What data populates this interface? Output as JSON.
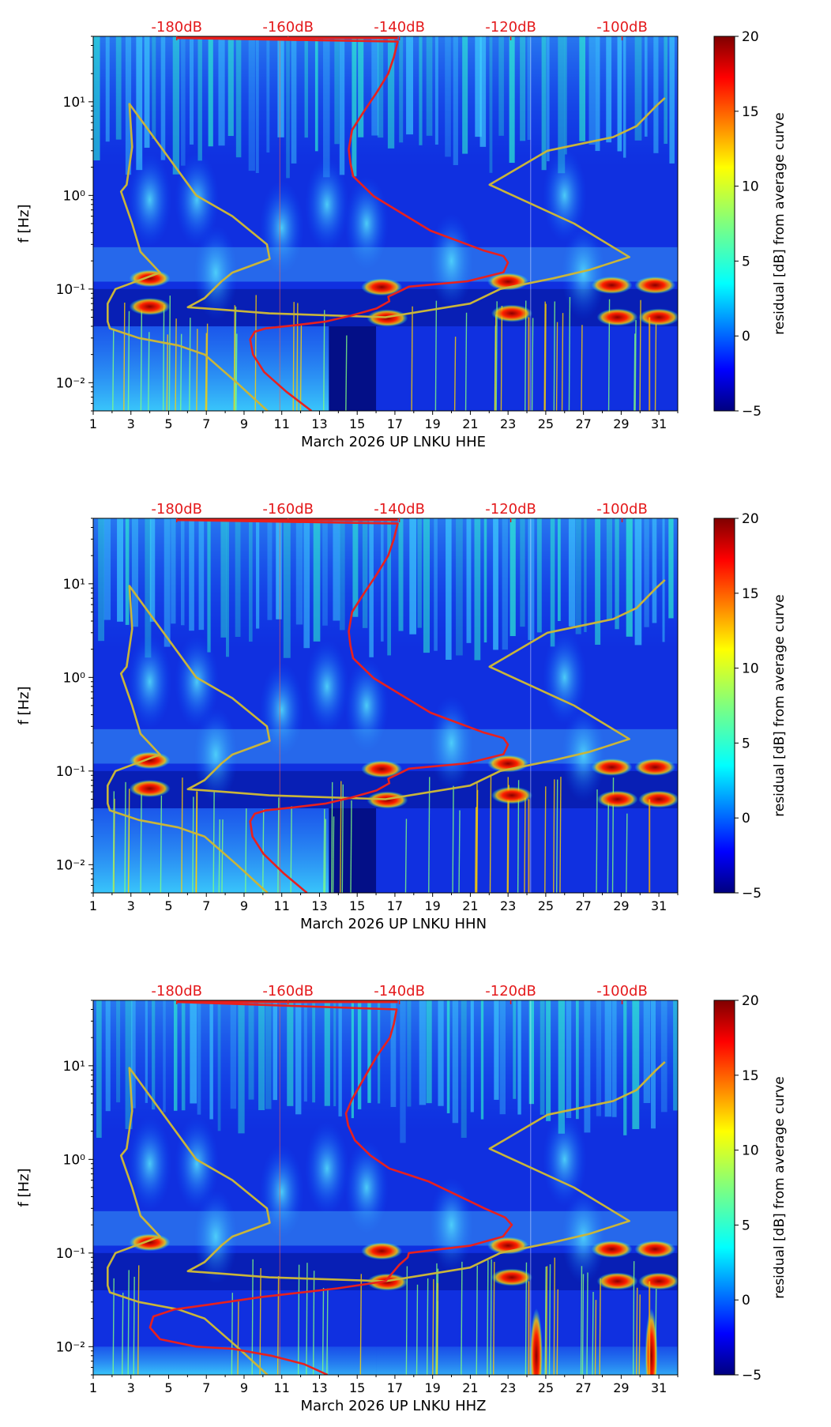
{
  "colors": {
    "red_curve": "#e8201e",
    "yellow_curve": "#c9b53a",
    "db_label": "#e41a1c",
    "axis": "#000000",
    "bg": "#000080"
  },
  "chart_data": [
    {
      "type": "heatmap",
      "xlabel": "March 2026 UP LNKU  HHE",
      "ylabel": "f [Hz]",
      "x_ticks": [
        "1",
        "3",
        "5",
        "7",
        "9",
        "11",
        "13",
        "15",
        "17",
        "19",
        "21",
        "23",
        "25",
        "27",
        "29",
        "31"
      ],
      "xlim": [
        1,
        32
      ],
      "y_ticks": [
        "10⁻²",
        "10⁻¹",
        "10⁰",
        "10¹"
      ],
      "ylim": [
        0.005,
        50
      ],
      "db_ticks": [
        "-180dB",
        "-160dB",
        "-140dB",
        "-120dB",
        "-100dB"
      ],
      "db_range": [
        -195,
        -90
      ],
      "colorbar": {
        "label": "residual [dB] from average curve",
        "ticks": [
          "-5",
          "0",
          "5",
          "10",
          "15",
          "20"
        ],
        "range": [
          -5,
          20
        ]
      },
      "red_curve": [
        [
          -155.8,
          0.005
        ],
        [
          -160.3,
          0.008
        ],
        [
          -164.3,
          0.013
        ],
        [
          -166.3,
          0.02
        ],
        [
          -166.8,
          0.029
        ],
        [
          -166.0,
          0.035
        ],
        [
          -164.0,
          0.038
        ],
        [
          -158.8,
          0.041
        ],
        [
          -153.2,
          0.045
        ],
        [
          -148.7,
          0.052
        ],
        [
          -144.1,
          0.062
        ],
        [
          -141.8,
          0.074
        ],
        [
          -142.0,
          0.083
        ],
        [
          -139.9,
          0.095
        ],
        [
          -138.3,
          0.106
        ],
        [
          -127.8,
          0.121
        ],
        [
          -121.3,
          0.151
        ],
        [
          -120.5,
          0.192
        ],
        [
          -121.3,
          0.225
        ],
        [
          -125.0,
          0.26
        ],
        [
          -134.4,
          0.42
        ],
        [
          -144.6,
          0.98
        ],
        [
          -148.3,
          1.6
        ],
        [
          -148.8,
          2.2
        ],
        [
          -149.1,
          3.1
        ],
        [
          -148.5,
          5.0
        ],
        [
          -146.3,
          8.0
        ],
        [
          -144.1,
          12.5
        ],
        [
          -142.0,
          20.0
        ],
        [
          -141.0,
          30.0
        ],
        [
          -140.3,
          44.0
        ],
        [
          -180.0,
          48.0
        ]
      ],
      "yellow_curve": [
        [
          -163.7,
          0.005
        ],
        [
          -169.2,
          0.01
        ],
        [
          -175.0,
          0.02
        ],
        [
          -179.7,
          0.025
        ],
        [
          -186.8,
          0.03
        ],
        [
          -192.0,
          0.038
        ],
        [
          -192.4,
          0.045
        ],
        [
          -192.4,
          0.07
        ],
        [
          -191.0,
          0.1
        ],
        [
          -183.0,
          0.15
        ],
        [
          -186.5,
          0.25
        ],
        [
          -188.0,
          0.5
        ],
        [
          -190.0,
          1.1
        ],
        [
          -189.0,
          1.3
        ],
        [
          -188.0,
          3.3
        ],
        [
          -188.5,
          9.5
        ],
        [
          -176.5,
          1.0
        ],
        [
          -170.0,
          0.6
        ],
        [
          -163.8,
          0.3
        ],
        [
          -163.3,
          0.21
        ],
        [
          -170.0,
          0.15
        ],
        [
          -172.0,
          0.12
        ],
        [
          -175.0,
          0.08
        ],
        [
          -178.0,
          0.064
        ],
        [
          -171.6,
          0.06
        ],
        [
          -163.4,
          0.055
        ],
        [
          -142.5,
          0.05
        ],
        [
          -127.3,
          0.07
        ],
        [
          -121.9,
          0.1
        ],
        [
          -112.4,
          0.13
        ],
        [
          -105.9,
          0.16
        ],
        [
          -98.7,
          0.22
        ],
        [
          -108.6,
          0.5
        ],
        [
          -123.8,
          1.3
        ],
        [
          -113.4,
          3.0
        ],
        [
          -101.6,
          4.2
        ],
        [
          -97.4,
          5.5
        ],
        [
          -93.9,
          9.0
        ],
        [
          -92.3,
          11.0
        ]
      ],
      "hot_spots": [
        [
          16.3,
          0.105
        ],
        [
          16.6,
          0.049
        ],
        [
          23.0,
          0.12
        ],
        [
          23.2,
          0.055
        ],
        [
          28.5,
          0.11
        ],
        [
          28.8,
          0.05
        ],
        [
          30.8,
          0.11
        ],
        [
          31.0,
          0.05
        ],
        [
          4.0,
          0.13
        ],
        [
          4.0,
          0.065
        ]
      ]
    },
    {
      "type": "heatmap",
      "xlabel": "March 2026 UP LNKU  HHN",
      "ylabel": "f [Hz]",
      "x_ticks": [
        "1",
        "3",
        "5",
        "7",
        "9",
        "11",
        "13",
        "15",
        "17",
        "19",
        "21",
        "23",
        "25",
        "27",
        "29",
        "31"
      ],
      "xlim": [
        1,
        32
      ],
      "y_ticks": [
        "10⁻²",
        "10⁻¹",
        "10⁰",
        "10¹"
      ],
      "ylim": [
        0.005,
        50
      ],
      "db_ticks": [
        "-180dB",
        "-160dB",
        "-140dB",
        "-120dB",
        "-100dB"
      ],
      "db_range": [
        -195,
        -90
      ],
      "colorbar": {
        "label": "residual [dB] from average curve",
        "ticks": [
          "-5",
          "0",
          "5",
          "10",
          "15",
          "20"
        ],
        "range": [
          -5,
          20
        ]
      },
      "red_curve": [
        [
          -156.6,
          0.005
        ],
        [
          -160.7,
          0.008
        ],
        [
          -164.4,
          0.013
        ],
        [
          -166.4,
          0.02
        ],
        [
          -166.8,
          0.029
        ],
        [
          -166.0,
          0.035
        ],
        [
          -164.0,
          0.038
        ],
        [
          -158.8,
          0.041
        ],
        [
          -153.2,
          0.045
        ],
        [
          -148.7,
          0.052
        ],
        [
          -144.1,
          0.062
        ],
        [
          -141.8,
          0.074
        ],
        [
          -142.0,
          0.083
        ],
        [
          -139.9,
          0.095
        ],
        [
          -138.3,
          0.106
        ],
        [
          -127.8,
          0.121
        ],
        [
          -121.3,
          0.151
        ],
        [
          -120.5,
          0.192
        ],
        [
          -121.3,
          0.225
        ],
        [
          -125.0,
          0.26
        ],
        [
          -134.4,
          0.42
        ],
        [
          -144.6,
          0.98
        ],
        [
          -148.3,
          1.6
        ],
        [
          -148.8,
          2.2
        ],
        [
          -149.1,
          3.1
        ],
        [
          -148.5,
          5.0
        ],
        [
          -146.3,
          8.0
        ],
        [
          -144.1,
          12.5
        ],
        [
          -142.0,
          20.0
        ],
        [
          -141.0,
          30.0
        ],
        [
          -140.3,
          44.0
        ],
        [
          -180.0,
          48.0
        ]
      ],
      "yellow_curve": [
        [
          -163.7,
          0.005
        ],
        [
          -169.2,
          0.01
        ],
        [
          -175.0,
          0.02
        ],
        [
          -179.7,
          0.025
        ],
        [
          -186.8,
          0.03
        ],
        [
          -192.0,
          0.038
        ],
        [
          -192.4,
          0.045
        ],
        [
          -192.4,
          0.07
        ],
        [
          -191.0,
          0.1
        ],
        [
          -183.0,
          0.15
        ],
        [
          -186.5,
          0.25
        ],
        [
          -188.0,
          0.5
        ],
        [
          -190.0,
          1.1
        ],
        [
          -189.0,
          1.3
        ],
        [
          -188.0,
          3.3
        ],
        [
          -188.5,
          9.5
        ],
        [
          -176.5,
          1.0
        ],
        [
          -170.0,
          0.6
        ],
        [
          -163.8,
          0.3
        ],
        [
          -163.3,
          0.21
        ],
        [
          -170.0,
          0.15
        ],
        [
          -172.0,
          0.12
        ],
        [
          -175.0,
          0.08
        ],
        [
          -178.0,
          0.064
        ],
        [
          -171.6,
          0.06
        ],
        [
          -163.4,
          0.055
        ],
        [
          -142.5,
          0.05
        ],
        [
          -127.3,
          0.07
        ],
        [
          -121.9,
          0.1
        ],
        [
          -112.4,
          0.13
        ],
        [
          -105.9,
          0.16
        ],
        [
          -98.7,
          0.22
        ],
        [
          -108.6,
          0.5
        ],
        [
          -123.8,
          1.3
        ],
        [
          -113.4,
          3.0
        ],
        [
          -101.6,
          4.2
        ],
        [
          -97.4,
          5.5
        ],
        [
          -93.9,
          9.0
        ],
        [
          -92.3,
          11.0
        ]
      ],
      "hot_spots": [
        [
          16.3,
          0.105
        ],
        [
          16.6,
          0.049
        ],
        [
          23.0,
          0.12
        ],
        [
          23.2,
          0.055
        ],
        [
          28.5,
          0.11
        ],
        [
          28.8,
          0.05
        ],
        [
          30.8,
          0.11
        ],
        [
          31.0,
          0.05
        ],
        [
          4.0,
          0.13
        ],
        [
          4.0,
          0.065
        ]
      ]
    },
    {
      "type": "heatmap",
      "xlabel": "March 2026 UP LNKU  HHZ",
      "ylabel": "f [Hz]",
      "x_ticks": [
        "1",
        "3",
        "5",
        "7",
        "9",
        "11",
        "13",
        "15",
        "17",
        "19",
        "21",
        "23",
        "25",
        "27",
        "29",
        "31"
      ],
      "xlim": [
        1,
        32
      ],
      "y_ticks": [
        "10⁻²",
        "10⁻¹",
        "10⁰",
        "10¹"
      ],
      "ylim": [
        0.005,
        50
      ],
      "db_ticks": [
        "-180dB",
        "-160dB",
        "-140dB",
        "-120dB",
        "-100dB"
      ],
      "db_range": [
        -195,
        -90
      ],
      "colorbar": {
        "label": "residual [dB] from average curve",
        "ticks": [
          "-5",
          "0",
          "5",
          "10",
          "15",
          "20"
        ],
        "range": [
          -5,
          20
        ]
      },
      "red_curve": [
        [
          -152.9,
          0.005
        ],
        [
          -157.1,
          0.0065
        ],
        [
          -163.0,
          0.008
        ],
        [
          -170.0,
          0.0095
        ],
        [
          -176.5,
          0.01
        ],
        [
          -183.0,
          0.012
        ],
        [
          -184.8,
          0.016
        ],
        [
          -184.2,
          0.021
        ],
        [
          -180.4,
          0.025
        ],
        [
          -174.4,
          0.028
        ],
        [
          -164.6,
          0.034
        ],
        [
          -151.1,
          0.042
        ],
        [
          -142.5,
          0.05
        ],
        [
          -140.0,
          0.075
        ],
        [
          -138.5,
          0.09
        ],
        [
          -138.3,
          0.1
        ],
        [
          -127.2,
          0.12
        ],
        [
          -121.4,
          0.15
        ],
        [
          -119.8,
          0.2
        ],
        [
          -121.0,
          0.24
        ],
        [
          -124.7,
          0.3
        ],
        [
          -134.7,
          0.58
        ],
        [
          -141.8,
          0.8
        ],
        [
          -145.2,
          1.1
        ],
        [
          -148.0,
          1.6
        ],
        [
          -149.2,
          2.3
        ],
        [
          -149.6,
          3.1
        ],
        [
          -148.5,
          4.4
        ],
        [
          -146.0,
          8.0
        ],
        [
          -144.1,
          12.5
        ],
        [
          -141.7,
          20.0
        ],
        [
          -141.0,
          28.0
        ],
        [
          -140.5,
          40.0
        ],
        [
          -180.0,
          48.0
        ]
      ],
      "yellow_curve": [
        [
          -163.7,
          0.005
        ],
        [
          -169.2,
          0.01
        ],
        [
          -175.0,
          0.02
        ],
        [
          -179.7,
          0.025
        ],
        [
          -186.8,
          0.03
        ],
        [
          -192.0,
          0.038
        ],
        [
          -192.4,
          0.045
        ],
        [
          -192.4,
          0.07
        ],
        [
          -191.0,
          0.1
        ],
        [
          -183.0,
          0.15
        ],
        [
          -186.5,
          0.25
        ],
        [
          -188.0,
          0.5
        ],
        [
          -190.0,
          1.1
        ],
        [
          -189.0,
          1.3
        ],
        [
          -188.0,
          3.3
        ],
        [
          -188.5,
          9.5
        ],
        [
          -176.5,
          1.0
        ],
        [
          -170.0,
          0.6
        ],
        [
          -163.8,
          0.3
        ],
        [
          -163.3,
          0.21
        ],
        [
          -170.0,
          0.15
        ],
        [
          -172.0,
          0.12
        ],
        [
          -175.0,
          0.08
        ],
        [
          -178.0,
          0.064
        ],
        [
          -171.6,
          0.06
        ],
        [
          -163.4,
          0.055
        ],
        [
          -142.5,
          0.05
        ],
        [
          -127.3,
          0.07
        ],
        [
          -121.9,
          0.1
        ],
        [
          -112.4,
          0.13
        ],
        [
          -105.9,
          0.16
        ],
        [
          -98.7,
          0.22
        ],
        [
          -108.6,
          0.5
        ],
        [
          -123.8,
          1.3
        ],
        [
          -113.4,
          3.0
        ],
        [
          -101.6,
          4.2
        ],
        [
          -97.4,
          5.5
        ],
        [
          -93.9,
          9.0
        ],
        [
          -92.3,
          11.0
        ]
      ],
      "hot_spots": [
        [
          16.3,
          0.105
        ],
        [
          16.6,
          0.049
        ],
        [
          23.0,
          0.12
        ],
        [
          23.2,
          0.055
        ],
        [
          28.5,
          0.11
        ],
        [
          28.8,
          0.05
        ],
        [
          30.8,
          0.11
        ],
        [
          31.0,
          0.05
        ],
        [
          4.0,
          0.13
        ],
        [
          24.5,
          0.008
        ],
        [
          30.6,
          0.008
        ]
      ]
    }
  ]
}
